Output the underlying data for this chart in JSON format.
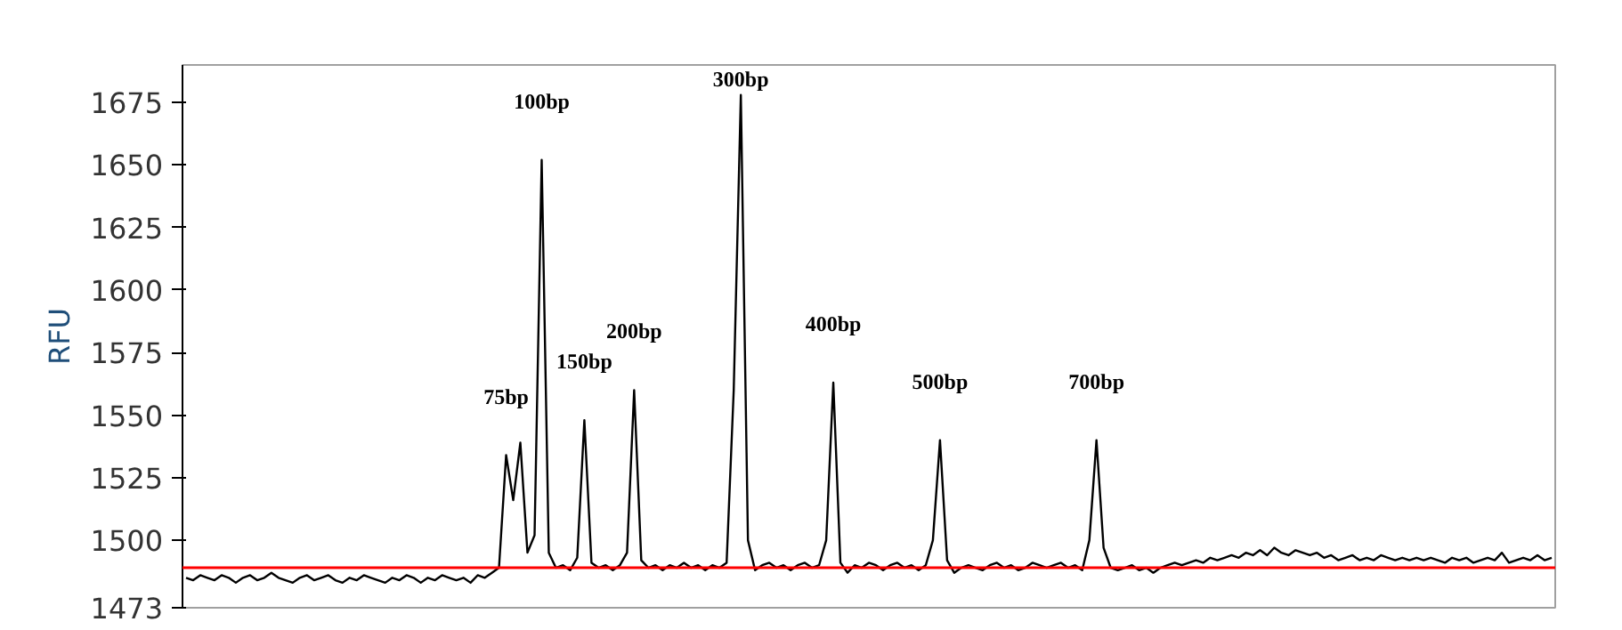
{
  "chart_data": {
    "type": "line",
    "ylabel": "RFU",
    "color": "#000000",
    "categories": [
      null,
      null,
      null,
      null,
      null,
      null,
      null,
      null,
      null,
      null,
      null,
      null,
      null,
      null,
      null,
      null,
      null,
      null,
      null,
      null,
      null,
      null,
      null,
      null,
      null,
      null,
      null,
      null,
      null,
      null,
      null,
      null,
      null,
      null,
      null,
      null,
      null,
      null,
      null,
      null,
      null,
      null,
      null,
      null,
      null,
      null,
      null,
      null,
      null,
      null,
      null,
      null,
      null,
      null,
      null,
      null,
      null,
      null,
      null,
      null,
      null,
      null,
      null,
      null,
      null,
      null,
      null,
      null,
      null,
      null,
      null,
      null,
      null,
      null,
      null,
      null,
      null,
      null,
      null,
      null,
      null,
      null,
      null,
      null,
      null,
      null,
      null,
      null,
      null,
      null,
      null,
      null,
      null,
      null,
      null,
      null,
      null,
      null,
      null,
      null,
      null,
      null,
      null,
      null,
      null,
      null,
      null,
      null,
      null,
      null,
      null,
      null,
      null,
      null,
      null,
      null,
      null,
      null,
      null,
      null,
      null,
      null,
      null,
      null,
      null,
      null,
      null,
      null,
      null,
      null,
      null,
      null,
      null,
      null,
      null,
      null,
      null,
      null,
      null,
      null,
      null,
      null,
      null,
      null,
      null,
      null,
      null,
      null,
      null,
      null,
      null,
      null,
      null,
      null,
      null,
      null,
      null,
      null,
      null,
      null,
      null,
      null,
      null,
      null,
      null,
      null,
      null,
      null,
      null,
      null,
      null,
      null,
      null,
      null,
      null,
      null,
      null,
      null,
      null,
      null,
      null,
      null,
      null,
      null,
      null,
      null,
      null,
      null,
      null,
      null,
      null,
      null,
      null
    ],
    "values": [
      1485,
      1484,
      1486,
      1485,
      1484,
      1486,
      1485,
      1483,
      1485,
      1486,
      1484,
      1485,
      1487,
      1485,
      1484,
      1483,
      1485,
      1486,
      1484,
      1485,
      1486,
      1484,
      1483,
      1485,
      1484,
      1486,
      1485,
      1484,
      1483,
      1485,
      1484,
      1486,
      1485,
      1483,
      1485,
      1484,
      1486,
      1485,
      1484,
      1485,
      1483,
      1486,
      1485,
      1487,
      1489,
      1534,
      1516,
      1539,
      1495,
      1502,
      1652,
      1495,
      1489,
      1490,
      1488,
      1493,
      1548,
      1491,
      1489,
      1490,
      1488,
      1490,
      1495,
      1560,
      1492,
      1489,
      1490,
      1488,
      1490,
      1489,
      1491,
      1489,
      1490,
      1488,
      1490,
      1489,
      1491,
      1560,
      1678,
      1500,
      1488,
      1490,
      1491,
      1489,
      1490,
      1488,
      1490,
      1491,
      1489,
      1490,
      1500,
      1563,
      1491,
      1487,
      1490,
      1489,
      1491,
      1490,
      1488,
      1490,
      1491,
      1489,
      1490,
      1488,
      1490,
      1500,
      1540,
      1492,
      1487,
      1489,
      1490,
      1489,
      1488,
      1490,
      1491,
      1489,
      1490,
      1488,
      1489,
      1491,
      1490,
      1489,
      1490,
      1491,
      1489,
      1490,
      1488,
      1500,
      1540,
      1497,
      1489,
      1488,
      1489,
      1490,
      1488,
      1489,
      1487,
      1489,
      1490,
      1491,
      1490,
      1491,
      1492,
      1491,
      1493,
      1492,
      1493,
      1494,
      1493,
      1495,
      1494,
      1496,
      1494,
      1497,
      1495,
      1494,
      1496,
      1495,
      1494,
      1495,
      1493,
      1494,
      1492,
      1493,
      1494,
      1492,
      1493,
      1492,
      1494,
      1493,
      1492,
      1493,
      1492,
      1493,
      1492,
      1493,
      1492,
      1491,
      1493,
      1492,
      1493,
      1491,
      1492,
      1493,
      1492,
      1495,
      1491,
      1492,
      1493,
      1492,
      1494,
      1492,
      1493
    ],
    "annotations": [
      {
        "text": "75bp",
        "y": 1534
      },
      {
        "text": "100bp",
        "y": 1652
      },
      {
        "text": "150bp",
        "y": 1548
      },
      {
        "text": "200bp",
        "y": 1560
      },
      {
        "text": "300bp",
        "y": 1678
      },
      {
        "text": "400bp",
        "y": 1563
      },
      {
        "text": "500bp",
        "y": 1540
      },
      {
        "text": "700bp",
        "y": 1540
      }
    ],
    "ylim": [
      1473,
      1690
    ],
    "yticks": [
      1473,
      1500,
      1525,
      1550,
      1575,
      1600,
      1625,
      1650,
      1675
    ],
    "ref_lines": [
      {
        "axis": "y",
        "value": 1489,
        "color": "#ff0000"
      }
    ],
    "tick_labels": "y"
  }
}
